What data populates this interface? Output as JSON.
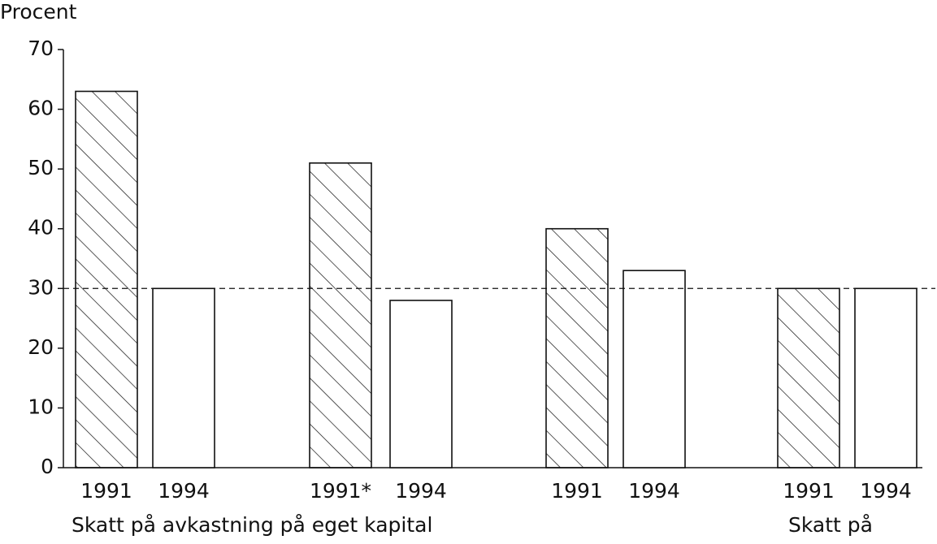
{
  "chart_data": {
    "type": "bar",
    "y_label": "Procent",
    "categories": [
      "1991",
      "1994",
      "1991*",
      "1994",
      "1991",
      "1994",
      "1991",
      "1994"
    ],
    "values": [
      63,
      30,
      51,
      28,
      40,
      33,
      30,
      30
    ],
    "hatched": [
      true,
      false,
      true,
      false,
      true,
      false,
      true,
      false
    ],
    "color": "#111111",
    "ylim": [
      0,
      70
    ],
    "yticks": [
      0,
      10,
      20,
      30,
      40,
      50,
      60,
      70
    ],
    "reference_line": 30,
    "group_labels": [
      "Skatt på avkastning på eget kapital",
      "Skatt på"
    ]
  }
}
